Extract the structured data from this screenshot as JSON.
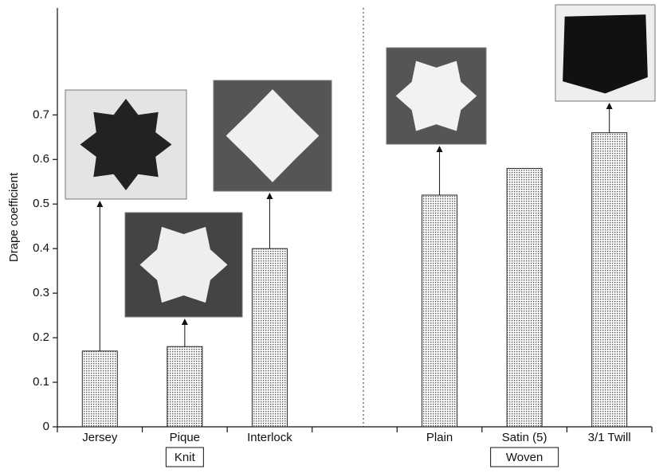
{
  "chart_data": {
    "type": "bar",
    "y_label": "Drape coefficient",
    "categories": [
      "Jersey",
      "Pique",
      "Interlock",
      null,
      "Plain",
      "Satin (5)",
      "3/1 Twill"
    ],
    "values": [
      0.17,
      0.18,
      0.4,
      null,
      0.52,
      0.58,
      0.66
    ],
    "group_labels": [
      "Knit",
      "Woven"
    ],
    "color": "#555555",
    "ylim": [
      0,
      0.94
    ],
    "yticks": [
      0,
      0.1,
      0.2,
      0.3,
      0.4,
      0.5,
      0.6,
      0.7
    ]
  }
}
